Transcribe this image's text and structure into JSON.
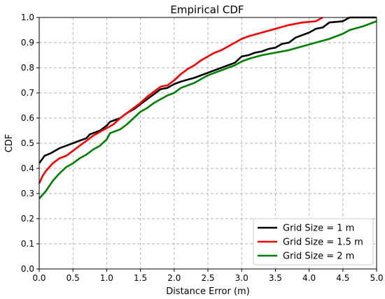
{
  "chart_data": {
    "type": "line",
    "title": "Empirical CDF",
    "xlabel": "Distance Error (m)",
    "ylabel": "CDF",
    "xlim": [
      0,
      5
    ],
    "ylim": [
      0,
      1
    ],
    "xticks": [
      "0.0",
      "0.5",
      "1.0",
      "1.5",
      "2.0",
      "2.5",
      "3.0",
      "3.5",
      "4.0",
      "4.5",
      "5.0"
    ],
    "yticks": [
      "0.0",
      "0.1",
      "0.2",
      "0.3",
      "0.4",
      "0.5",
      "0.6",
      "0.7",
      "0.8",
      "0.9",
      "1.0"
    ],
    "grid": true,
    "legend_position": "lower-right",
    "series": [
      {
        "name": "Grid Size = 1 m",
        "color": "#000000",
        "points": [
          [
            0.0,
            0.42
          ],
          [
            0.08,
            0.45
          ],
          [
            0.17,
            0.46
          ],
          [
            0.3,
            0.48
          ],
          [
            0.45,
            0.495
          ],
          [
            0.6,
            0.51
          ],
          [
            0.7,
            0.52
          ],
          [
            0.75,
            0.535
          ],
          [
            0.9,
            0.55
          ],
          [
            1.0,
            0.57
          ],
          [
            1.05,
            0.585
          ],
          [
            1.2,
            0.6
          ],
          [
            1.3,
            0.62
          ],
          [
            1.4,
            0.635
          ],
          [
            1.5,
            0.655
          ],
          [
            1.6,
            0.675
          ],
          [
            1.7,
            0.695
          ],
          [
            1.8,
            0.715
          ],
          [
            1.9,
            0.72
          ],
          [
            2.0,
            0.735
          ],
          [
            2.1,
            0.745
          ],
          [
            2.3,
            0.76
          ],
          [
            2.5,
            0.78
          ],
          [
            2.7,
            0.8
          ],
          [
            2.9,
            0.82
          ],
          [
            3.0,
            0.845
          ],
          [
            3.1,
            0.85
          ],
          [
            3.2,
            0.86
          ],
          [
            3.3,
            0.865
          ],
          [
            3.4,
            0.875
          ],
          [
            3.5,
            0.88
          ],
          [
            3.6,
            0.895
          ],
          [
            3.7,
            0.9
          ],
          [
            3.8,
            0.92
          ],
          [
            3.9,
            0.93
          ],
          [
            4.0,
            0.94
          ],
          [
            4.1,
            0.955
          ],
          [
            4.2,
            0.96
          ],
          [
            4.3,
            0.98
          ],
          [
            4.5,
            0.985
          ],
          [
            4.6,
            1.0
          ],
          [
            5.0,
            1.0
          ]
        ]
      },
      {
        "name": "Grid Size = 1.5 m",
        "color": "#ff0000",
        "points": [
          [
            0.0,
            0.34
          ],
          [
            0.05,
            0.37
          ],
          [
            0.1,
            0.39
          ],
          [
            0.2,
            0.42
          ],
          [
            0.3,
            0.44
          ],
          [
            0.4,
            0.45
          ],
          [
            0.5,
            0.47
          ],
          [
            0.6,
            0.49
          ],
          [
            0.7,
            0.51
          ],
          [
            0.8,
            0.53
          ],
          [
            0.9,
            0.545
          ],
          [
            1.0,
            0.56
          ],
          [
            1.1,
            0.575
          ],
          [
            1.2,
            0.6
          ],
          [
            1.3,
            0.62
          ],
          [
            1.4,
            0.64
          ],
          [
            1.5,
            0.66
          ],
          [
            1.6,
            0.685
          ],
          [
            1.7,
            0.705
          ],
          [
            1.8,
            0.725
          ],
          [
            1.9,
            0.73
          ],
          [
            2.0,
            0.75
          ],
          [
            2.1,
            0.775
          ],
          [
            2.2,
            0.795
          ],
          [
            2.3,
            0.81
          ],
          [
            2.4,
            0.83
          ],
          [
            2.5,
            0.845
          ],
          [
            2.6,
            0.86
          ],
          [
            2.7,
            0.87
          ],
          [
            2.8,
            0.885
          ],
          [
            2.9,
            0.9
          ],
          [
            3.0,
            0.915
          ],
          [
            3.1,
            0.925
          ],
          [
            3.3,
            0.94
          ],
          [
            3.5,
            0.955
          ],
          [
            3.7,
            0.97
          ],
          [
            3.9,
            0.98
          ],
          [
            4.1,
            0.985
          ],
          [
            4.2,
            1.0
          ]
        ]
      },
      {
        "name": "Grid Size = 2 m",
        "color": "#008000",
        "points": [
          [
            0.0,
            0.28
          ],
          [
            0.1,
            0.31
          ],
          [
            0.2,
            0.35
          ],
          [
            0.3,
            0.38
          ],
          [
            0.4,
            0.405
          ],
          [
            0.5,
            0.42
          ],
          [
            0.6,
            0.44
          ],
          [
            0.7,
            0.455
          ],
          [
            0.8,
            0.475
          ],
          [
            0.9,
            0.49
          ],
          [
            1.0,
            0.515
          ],
          [
            1.05,
            0.54
          ],
          [
            1.2,
            0.555
          ],
          [
            1.3,
            0.575
          ],
          [
            1.4,
            0.6
          ],
          [
            1.5,
            0.625
          ],
          [
            1.6,
            0.64
          ],
          [
            1.7,
            0.66
          ],
          [
            1.8,
            0.675
          ],
          [
            1.9,
            0.69
          ],
          [
            2.0,
            0.7
          ],
          [
            2.1,
            0.72
          ],
          [
            2.3,
            0.74
          ],
          [
            2.5,
            0.77
          ],
          [
            2.7,
            0.79
          ],
          [
            2.9,
            0.81
          ],
          [
            3.0,
            0.825
          ],
          [
            3.1,
            0.835
          ],
          [
            3.3,
            0.85
          ],
          [
            3.5,
            0.86
          ],
          [
            3.7,
            0.87
          ],
          [
            3.9,
            0.885
          ],
          [
            4.1,
            0.9
          ],
          [
            4.3,
            0.915
          ],
          [
            4.5,
            0.935
          ],
          [
            4.6,
            0.95
          ],
          [
            4.8,
            0.965
          ],
          [
            5.0,
            0.985
          ]
        ]
      }
    ]
  }
}
